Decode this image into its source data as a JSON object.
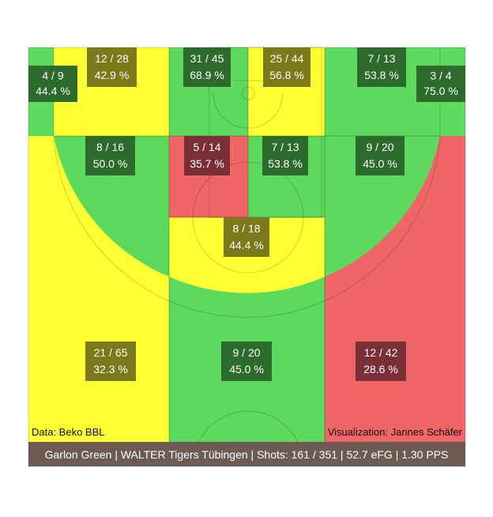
{
  "chart_data": {
    "type": "heatmap",
    "title": "",
    "source": "Data: Beko BBL",
    "credit": "Visualization: Jannes Schäfer",
    "summary": "Garlon Green | WALTER Tigers Tübingen | Shots: 161 / 351 | 52.7 eFG | 1.30 PPS",
    "colors": {
      "green": "#5dd95d",
      "yellow": "#ffff33",
      "red": "#f06565",
      "footer": "#6d5a52"
    },
    "zones": [
      {
        "id": "right-corner-three",
        "made": 4,
        "attempts": 9,
        "label": "4 / 9",
        "pct": "44.4 %",
        "rating": "green"
      },
      {
        "id": "right-baseline-two",
        "made": 12,
        "attempts": 28,
        "label": "12 / 28",
        "pct": "42.9 %",
        "rating": "yellow"
      },
      {
        "id": "restricted-area-right",
        "made": 31,
        "attempts": 45,
        "label": "31 / 45",
        "pct": "68.9 %",
        "rating": "green"
      },
      {
        "id": "restricted-area-left",
        "made": 25,
        "attempts": 44,
        "label": "25 / 44",
        "pct": "56.8 %",
        "rating": "yellow"
      },
      {
        "id": "left-baseline-two",
        "made": 7,
        "attempts": 13,
        "label": "7 / 13",
        "pct": "53.8 %",
        "rating": "green"
      },
      {
        "id": "left-corner-three",
        "made": 3,
        "attempts": 4,
        "label": "3 / 4",
        "pct": "75.0 %",
        "rating": "green"
      },
      {
        "id": "right-wing-two",
        "made": 8,
        "attempts": 16,
        "label": "8 / 16",
        "pct": "50.0 %",
        "rating": "green"
      },
      {
        "id": "paint-right",
        "made": 5,
        "attempts": 14,
        "label": "5 / 14",
        "pct": "35.7 %",
        "rating": "red"
      },
      {
        "id": "paint-left",
        "made": 7,
        "attempts": 13,
        "label": "7 / 13",
        "pct": "53.8 %",
        "rating": "green"
      },
      {
        "id": "left-wing-two",
        "made": 9,
        "attempts": 20,
        "label": "9 / 20",
        "pct": "45.0 %",
        "rating": "green"
      },
      {
        "id": "top-of-key-two",
        "made": 8,
        "attempts": 18,
        "label": "8 / 18",
        "pct": "44.4 %",
        "rating": "yellow"
      },
      {
        "id": "right-wing-three",
        "made": 21,
        "attempts": 65,
        "label": "21 / 65",
        "pct": "32.3 %",
        "rating": "yellow"
      },
      {
        "id": "top-three",
        "made": 9,
        "attempts": 20,
        "label": "9 / 20",
        "pct": "45.0 %",
        "rating": "green"
      },
      {
        "id": "left-wing-three",
        "made": 12,
        "attempts": 42,
        "label": "12 / 42",
        "pct": "28.6 %",
        "rating": "red"
      }
    ]
  }
}
